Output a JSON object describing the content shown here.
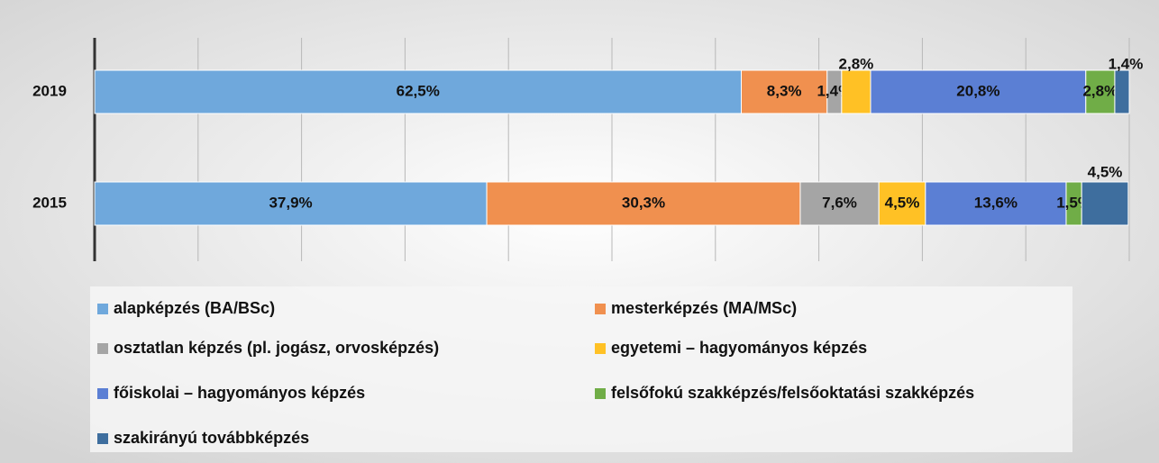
{
  "chart_data": {
    "type": "stacked-bar-horizontal",
    "categories": [
      "2019",
      "2015"
    ],
    "xlim": [
      0,
      100
    ],
    "xticks": [
      0,
      10,
      20,
      30,
      40,
      50,
      60,
      70,
      80,
      90,
      100
    ],
    "grid": true,
    "legend": "bottom",
    "series": [
      {
        "name": "alapképzés (BA/BSc)",
        "color": "#6fa8dc",
        "values": [
          62.5,
          37.9
        ],
        "value_labels": [
          "62,5%",
          "37,9%"
        ]
      },
      {
        "name": "mesterképzés (MA/MSc)",
        "color": "#f0904f",
        "values": [
          8.3,
          30.3
        ],
        "value_labels": [
          "8,3%",
          "30,3%"
        ]
      },
      {
        "name": "osztatlan képzés (pl. jogász, orvosképzés)",
        "color": "#a5a5a5",
        "values": [
          1.4,
          7.6
        ],
        "value_labels": [
          "1,4%",
          "7,6%"
        ]
      },
      {
        "name": "egyetemi – hagyományos képzés",
        "color": "#ffc125",
        "values": [
          2.8,
          4.5
        ],
        "value_labels": [
          "2,8%",
          "4,5%"
        ]
      },
      {
        "name": "főiskolai – hagyományos képzés",
        "color": "#5b7fd4",
        "values": [
          20.8,
          13.6
        ],
        "value_labels": [
          "20,8%",
          "13,6%"
        ]
      },
      {
        "name": "felsőfokú szakképzés/felsőoktatási szakképzés",
        "color": "#70ad47",
        "values": [
          2.8,
          1.5
        ],
        "value_labels": [
          "2,8%",
          "1,5%"
        ]
      },
      {
        "name": "szakirányú továbbképzés",
        "color": "#3e6e9e",
        "values": [
          1.4,
          4.5
        ],
        "value_labels": [
          "1,4%",
          "4,5%"
        ]
      }
    ]
  }
}
